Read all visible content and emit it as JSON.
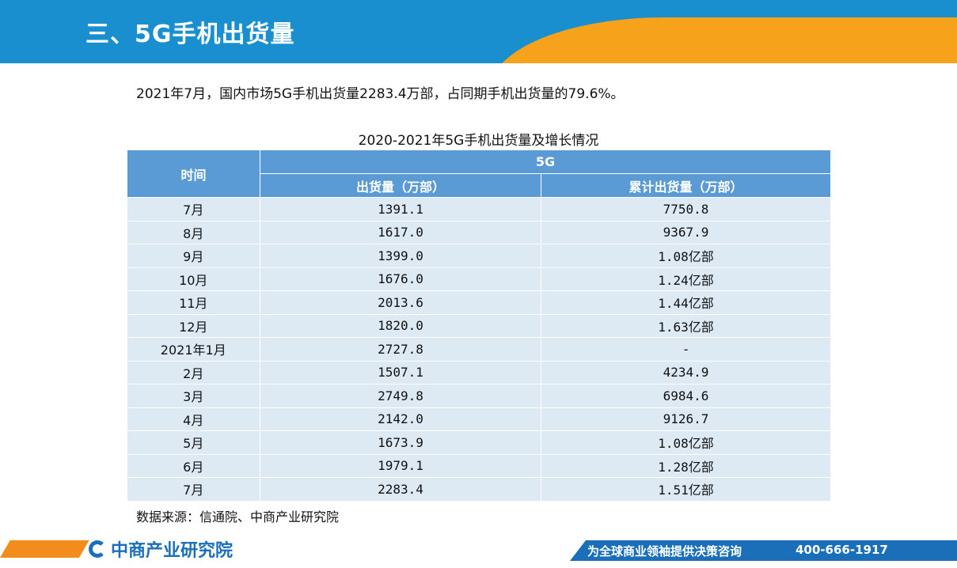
{
  "header": {
    "title": "三、5G手机出货量"
  },
  "summary": "2021年7月，国内市场5G手机出货量2283.4万部，占同期手机出货量的79.6%。",
  "table": {
    "title": "2020-2021年5G手机出货量及增长情况",
    "col_time": "时间",
    "group_label": "5G",
    "col_shipments": "出货量（万部）",
    "col_cumulative": "累计出货量（万部）",
    "rows": [
      {
        "time": "7月",
        "shipments": "1391.1",
        "cumulative": "7750.8"
      },
      {
        "time": "8月",
        "shipments": "1617.0",
        "cumulative": "9367.9"
      },
      {
        "time": "9月",
        "shipments": "1399.0",
        "cumulative": "1.08亿部"
      },
      {
        "time": "10月",
        "shipments": "1676.0",
        "cumulative": "1.24亿部"
      },
      {
        "time": "11月",
        "shipments": "2013.6",
        "cumulative": "1.44亿部"
      },
      {
        "time": "12月",
        "shipments": "1820.0",
        "cumulative": "1.63亿部"
      },
      {
        "time": "2021年1月",
        "shipments": "2727.8",
        "cumulative": "-"
      },
      {
        "time": "2月",
        "shipments": "1507.1",
        "cumulative": "4234.9"
      },
      {
        "time": "3月",
        "shipments": "2749.8",
        "cumulative": "6984.6"
      },
      {
        "time": "4月",
        "shipments": "2142.0",
        "cumulative": "9126.7"
      },
      {
        "time": "5月",
        "shipments": "1673.9",
        "cumulative": "1.08亿部"
      },
      {
        "time": "6月",
        "shipments": "1979.1",
        "cumulative": "1.28亿部"
      },
      {
        "time": "7月",
        "shipments": "2283.4",
        "cumulative": "1.51亿部"
      }
    ]
  },
  "source": "数据来源：信通院、中商产业研究院",
  "footer": {
    "brand": "中商产业研究院",
    "tagline": "为全球商业领袖提供决策咨询",
    "phone": "400-666-1917"
  },
  "colors": {
    "header_blue": "#1a8fd0",
    "header_orange": "#f7a21b",
    "table_header": "#5b9bd5",
    "table_row": "#dde9f3",
    "footer_blue": "#1a6fb8",
    "footer_orange": "#f28c1d"
  }
}
